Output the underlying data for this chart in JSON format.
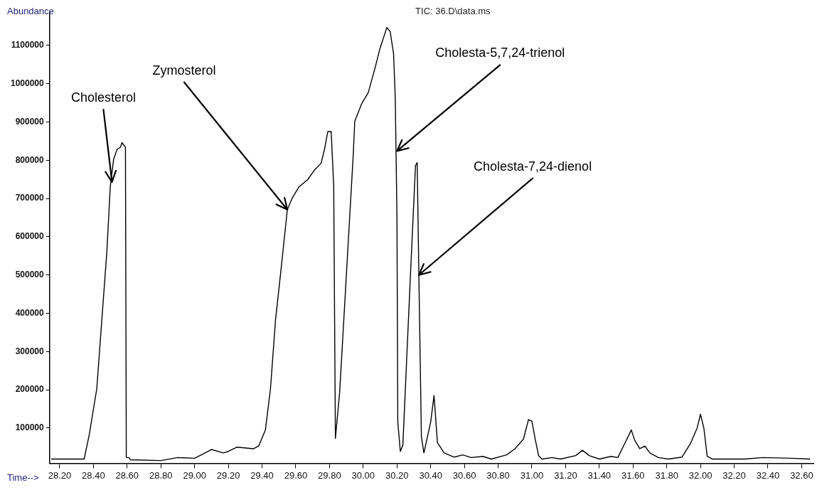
{
  "chart_data": {
    "type": "line",
    "title": "TIC: 36.D\\data.ms",
    "xlabel": "Time-->",
    "ylabel": "Abundance",
    "xlim": [
      28.14,
      32.67
    ],
    "ylim": [
      8000,
      1185000
    ],
    "xticks": [
      {
        "value": 28.2,
        "label": "28.20"
      },
      {
        "value": 28.4,
        "label": "28.40"
      },
      {
        "value": 28.6,
        "label": "28.60"
      },
      {
        "value": 28.8,
        "label": "28.80"
      },
      {
        "value": 29.0,
        "label": "29.00"
      },
      {
        "value": 29.2,
        "label": "29.20"
      },
      {
        "value": 29.4,
        "label": "29.40"
      },
      {
        "value": 29.6,
        "label": "29.60"
      },
      {
        "value": 29.8,
        "label": "29.80"
      },
      {
        "value": 30.0,
        "label": "30.00"
      },
      {
        "value": 30.2,
        "label": "30.20"
      },
      {
        "value": 30.4,
        "label": "30.40"
      },
      {
        "value": 30.6,
        "label": "30.60"
      },
      {
        "value": 30.8,
        "label": "30.80"
      },
      {
        "value": 31.0,
        "label": "31.00"
      },
      {
        "value": 31.2,
        "label": "31.20"
      },
      {
        "value": 31.4,
        "label": "31.40"
      },
      {
        "value": 31.6,
        "label": "31.60"
      },
      {
        "value": 31.8,
        "label": "31.80"
      },
      {
        "value": 32.0,
        "label": "32.00"
      },
      {
        "value": 32.2,
        "label": "32.20"
      },
      {
        "value": 32.4,
        "label": "32.40"
      },
      {
        "value": 32.6,
        "label": "32.60"
      }
    ],
    "yticks": [
      100000,
      200000,
      300000,
      400000,
      500000,
      600000,
      700000,
      800000,
      900000,
      1000000,
      1100000
    ],
    "grid": false,
    "legend": false,
    "annotations": [
      {
        "text": "Cholesterol",
        "x": 28.51,
        "y": 743000
      },
      {
        "text": "Zymosterol",
        "x": 29.55,
        "y": 671000
      },
      {
        "text": "Cholesta-5,7,24-trienol",
        "x": 30.2,
        "y": 824000
      },
      {
        "text": "Cholesta-7,24-dienol",
        "x": 30.33,
        "y": 500000
      }
    ],
    "series": [
      {
        "color": "#000000",
        "x": [
          28.15,
          28.345,
          28.375,
          28.42,
          28.45,
          28.48,
          28.5,
          28.52,
          28.54,
          28.56,
          28.57,
          28.59,
          28.595,
          28.61,
          28.62,
          28.8,
          28.9,
          29.0,
          29.05,
          29.1,
          29.17,
          29.2,
          29.25,
          29.35,
          29.38,
          29.42,
          29.45,
          29.48,
          29.51,
          29.55,
          29.58,
          29.62,
          29.67,
          29.71,
          29.75,
          29.77,
          29.79,
          29.81,
          29.825,
          29.835,
          29.86,
          29.9,
          29.94,
          29.95,
          29.99,
          30.03,
          30.07,
          30.1,
          30.14,
          30.16,
          30.18,
          30.19,
          30.2,
          30.205,
          30.22,
          30.235,
          30.28,
          30.31,
          30.32,
          30.33,
          30.345,
          30.36,
          30.4,
          30.42,
          30.44,
          30.48,
          30.54,
          30.59,
          30.64,
          30.71,
          30.76,
          30.85,
          30.9,
          30.95,
          30.98,
          31.0,
          31.02,
          31.04,
          31.06,
          31.12,
          31.17,
          31.26,
          31.3,
          31.34,
          31.4,
          31.47,
          31.51,
          31.55,
          31.59,
          31.61,
          31.64,
          31.67,
          31.7,
          31.75,
          31.81,
          31.89,
          31.94,
          31.98,
          32.0,
          32.02,
          32.04,
          32.07,
          32.26,
          32.37,
          32.54,
          32.65
        ],
        "values": [
          19000,
          19000,
          82000,
          203000,
          383000,
          563000,
          731000,
          803000,
          828000,
          834000,
          846000,
          834000,
          23000,
          23000,
          17000,
          15000,
          23000,
          21000,
          32000,
          44000,
          35000,
          39000,
          50000,
          46000,
          53000,
          95000,
          203000,
          383000,
          504000,
          671000,
          702000,
          731000,
          749000,
          774000,
          792000,
          828000,
          875000,
          875000,
          732000,
          73000,
          192000,
          500000,
          808000,
          902000,
          947000,
          977000,
          1041000,
          1093000,
          1147000,
          1136000,
          1078000,
          963000,
          655000,
          116000,
          39000,
          55000,
          500000,
          786000,
          794000,
          500000,
          77000,
          35000,
          116000,
          185000,
          62000,
          35000,
          24000,
          30000,
          23000,
          26000,
          19000,
          30000,
          46000,
          71000,
          122000,
          118000,
          71000,
          28000,
          19000,
          23000,
          19000,
          28000,
          42000,
          28000,
          19000,
          26000,
          23000,
          59000,
          95000,
          68000,
          46000,
          53000,
          35000,
          23000,
          19000,
          24000,
          59000,
          100000,
          136000,
          100000,
          26000,
          19000,
          19000,
          23000,
          21000,
          19000
        ]
      }
    ]
  }
}
